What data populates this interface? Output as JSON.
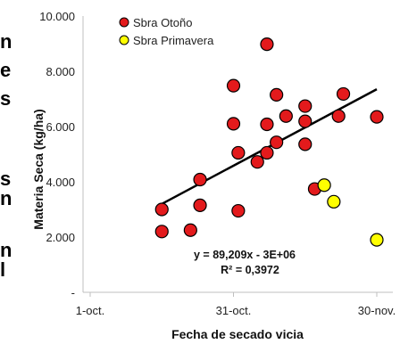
{
  "chart_data": {
    "type": "scatter",
    "ylabel": "Materia Seca (kg/ha)",
    "xlabel": "Fecha de secado vicia",
    "ylim": [
      0,
      10000
    ],
    "xlim": [
      0,
      62
    ],
    "y_ticks": [
      {
        "value": 0,
        "label": "-"
      },
      {
        "value": 2000,
        "label": "2.000"
      },
      {
        "value": 4000,
        "label": "4.000"
      },
      {
        "value": 6000,
        "label": "6.000"
      },
      {
        "value": 8000,
        "label": "8.000"
      },
      {
        "value": 10000,
        "label": "10.000"
      }
    ],
    "x_ticks": [
      {
        "value": 0,
        "label": "1-oct."
      },
      {
        "value": 30,
        "label": "31-oct."
      },
      {
        "value": 60,
        "label": "30-nov."
      }
    ],
    "series": [
      {
        "name": "Sbra Otoño",
        "color": "#e31a1c",
        "points": [
          {
            "x": 15,
            "y": 2200
          },
          {
            "x": 15,
            "y": 3000
          },
          {
            "x": 21,
            "y": 2250
          },
          {
            "x": 23,
            "y": 3150
          },
          {
            "x": 23,
            "y": 4080
          },
          {
            "x": 30,
            "y": 7480
          },
          {
            "x": 30,
            "y": 6100
          },
          {
            "x": 31,
            "y": 5050
          },
          {
            "x": 31,
            "y": 2950
          },
          {
            "x": 35,
            "y": 4720
          },
          {
            "x": 37,
            "y": 5050
          },
          {
            "x": 37,
            "y": 6080
          },
          {
            "x": 37,
            "y": 8980
          },
          {
            "x": 39,
            "y": 5430
          },
          {
            "x": 39,
            "y": 7150
          },
          {
            "x": 41,
            "y": 6380
          },
          {
            "x": 45,
            "y": 5360
          },
          {
            "x": 45,
            "y": 6190
          },
          {
            "x": 45,
            "y": 6740
          },
          {
            "x": 47,
            "y": 3740
          },
          {
            "x": 52,
            "y": 6380
          },
          {
            "x": 53,
            "y": 7180
          },
          {
            "x": 60,
            "y": 6350
          }
        ]
      },
      {
        "name": "Sbra Primavera",
        "color": "#ffff00",
        "points": [
          {
            "x": 49,
            "y": 3880
          },
          {
            "x": 51,
            "y": 3280
          },
          {
            "x": 60,
            "y": 1900
          }
        ]
      }
    ],
    "trendline": {
      "x": [
        15,
        60
      ],
      "y": [
        3200,
        7350
      ],
      "equation": "y = 89,209x - 3E+06",
      "r_squared": "R² = 0,3972"
    },
    "grid": false,
    "legend_position": "top-left"
  },
  "edge_glyphs": [
    "n",
    "e",
    "s",
    "s",
    "n",
    "n",
    "l"
  ]
}
